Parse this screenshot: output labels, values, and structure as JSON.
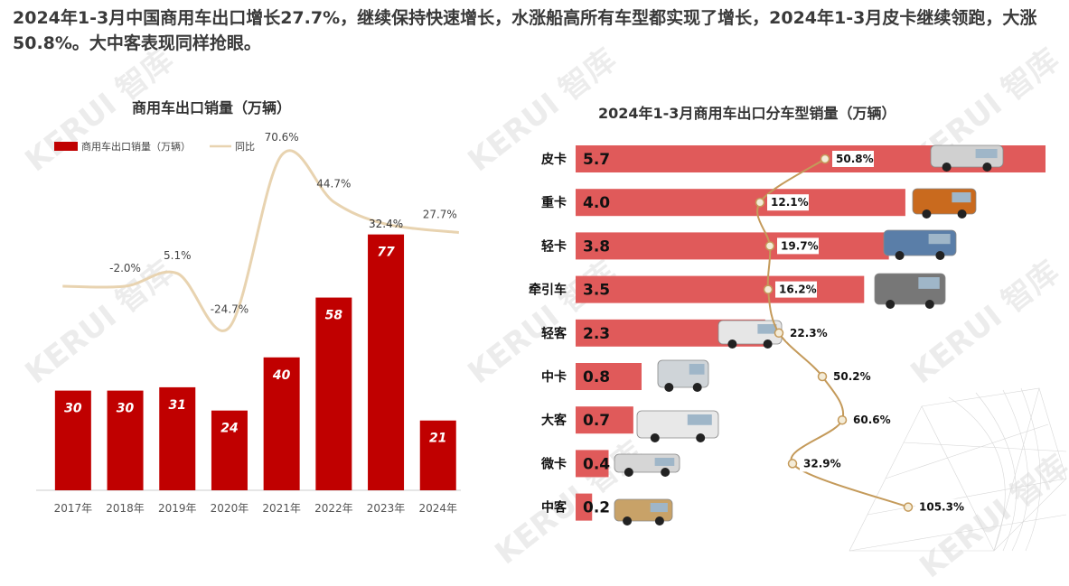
{
  "headline": "2024年1-3月中国商用车出口增长27.7%，继续保持快速增长，水涨船高所有车型都实现了增长，2024年1-3月皮卡继续领跑，大涨50.8%。大中客表现同样抢眼。",
  "watermark": "KERUI 智库",
  "colors": {
    "bar": "#c00000",
    "bar_light": "#e05a5a",
    "line": "#e8d3b0",
    "line_dark": "#c49a5a"
  },
  "chart_data": [
    {
      "type": "bar",
      "title": "商用车出口销量（万辆）",
      "categories": [
        "2017年",
        "2018年",
        "2019年",
        "2020年",
        "2021年",
        "2022年",
        "2023年",
        "2024年"
      ],
      "series": [
        {
          "name": "商用车出口销量（万辆）",
          "values": [
            30,
            30,
            31,
            24,
            40,
            58,
            77,
            21
          ]
        },
        {
          "name": "同比",
          "values": [
            "",
            "-2.0%",
            "5.1%",
            "-24.7%",
            "70.6%",
            "44.7%",
            "32.4%",
            "27.7%"
          ],
          "numeric": [
            null,
            -2.0,
            5.1,
            -24.7,
            70.6,
            44.7,
            32.4,
            27.7
          ]
        }
      ],
      "value_labels": [
        "30",
        "30",
        "31",
        "24",
        "40",
        "58",
        "77",
        "21"
      ],
      "legend": "top-left",
      "ylim": [
        0,
        100
      ]
    },
    {
      "type": "bar",
      "title": "2024年1-3月商用车出口分车型销量（万辆）",
      "categories": [
        "皮卡",
        "重卡",
        "轻卡",
        "牵引车",
        "轻客",
        "中卡",
        "大客",
        "微卡",
        "中客"
      ],
      "values": [
        5.7,
        4.0,
        3.8,
        3.5,
        2.3,
        0.8,
        0.7,
        0.4,
        0.2
      ],
      "value_labels": [
        "5.7",
        "4.0",
        "3.8",
        "3.5",
        "2.3",
        "0.8",
        "0.7",
        "0.4",
        "0.2"
      ],
      "growth_labels": [
        "50.8%",
        "12.1%",
        "19.7%",
        "16.2%",
        "22.3%",
        "50.2%",
        "60.6%",
        "32.9%",
        "105.3%"
      ],
      "growth": [
        50.8,
        12.1,
        19.7,
        16.2,
        22.3,
        50.2,
        60.6,
        32.9,
        105.3
      ],
      "orientation": "horizontal",
      "xlim": [
        0,
        6
      ]
    }
  ]
}
